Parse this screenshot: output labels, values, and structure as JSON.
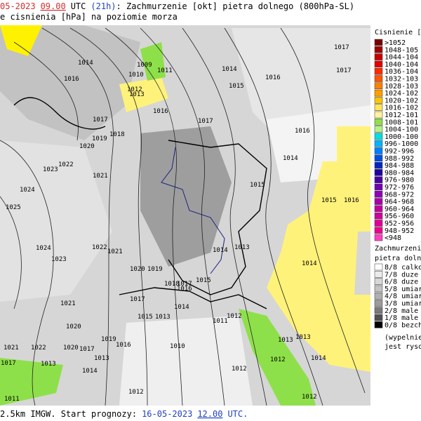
{
  "header": {
    "date": "05-2023",
    "time": "09.00",
    "utc": "UTC",
    "lead": "(21h)",
    "title": ": Zachmurzenie [okt] pietra dolnego (800hPa-SL)",
    "subtitle": "e cisnienia [hPa] na poziomie morza"
  },
  "footer": {
    "prefix": "2.5km IMGW. Start prognozy:",
    "date": "16-05-2023",
    "time": "12.00",
    "utc": "UTC."
  },
  "map_labels": [
    "1017",
    "1014",
    "1009",
    "1011",
    "1014",
    "1016",
    "1010",
    "1015",
    "1012",
    "1016",
    "1013",
    "1017",
    "1016",
    "1017",
    "1016",
    "1017",
    "1018",
    "1019",
    "1020",
    "1022",
    "1023",
    "1021",
    "1014",
    "1015",
    "1024",
    "1015",
    "1016",
    "1025",
    "1024",
    "1022",
    "1021",
    "1023",
    "1014",
    "1013",
    "1014",
    "1020",
    "1019",
    "1018",
    "1017",
    "1015",
    "1016",
    "1017",
    "1014",
    "1021",
    "1015",
    "1013",
    "1012",
    "1011",
    "1020",
    "1019",
    "1016",
    "1010",
    "1013",
    "1013",
    "1014",
    "1012",
    "1012",
    "1012",
    "1013",
    "1014",
    "1011",
    "1022",
    "1021",
    "1020",
    "1017",
    "1013",
    "1012",
    "1017"
  ],
  "pressure_legend": {
    "title": "Cisnienie [hP",
    "items": [
      {
        "label": ">1052",
        "color": "#7a0000"
      },
      {
        "label": "1048-105",
        "color": "#a00000"
      },
      {
        "label": "1044-104",
        "color": "#c80000"
      },
      {
        "label": "1040-104",
        "color": "#e60000"
      },
      {
        "label": "1036-104",
        "color": "#ff2a00"
      },
      {
        "label": "1032-103",
        "color": "#ff5500"
      },
      {
        "label": "1028-103",
        "color": "#ff7f00"
      },
      {
        "label": "1024-102",
        "color": "#ffa000"
      },
      {
        "label": "1020-102",
        "color": "#ffc400"
      },
      {
        "label": "1016-102",
        "color": "#ffe45c"
      },
      {
        "label": "1012-101",
        "color": "#fff3a0"
      },
      {
        "label": "1008-101",
        "color": "#8ee04a"
      },
      {
        "label": "1004-100",
        "color": "#b6f08a"
      },
      {
        "label": "1000-100",
        "color": "#00e0e0"
      },
      {
        "label": "996-1000",
        "color": "#00b4ff"
      },
      {
        "label": "992-996",
        "color": "#0080ff"
      },
      {
        "label": "988-992",
        "color": "#0050e0"
      },
      {
        "label": "984-988",
        "color": "#0028c0"
      },
      {
        "label": "980-984",
        "color": "#2000a0"
      },
      {
        "label": "976-980",
        "color": "#4a00a8"
      },
      {
        "label": "972-976",
        "color": "#7000b0"
      },
      {
        "label": "968-972",
        "color": "#9000b4"
      },
      {
        "label": "964-968",
        "color": "#a800a8"
      },
      {
        "label": "960-964",
        "color": "#c000a0"
      },
      {
        "label": "956-960",
        "color": "#d0009a"
      },
      {
        "label": "952-956",
        "color": "#e00094"
      },
      {
        "label": "948-952",
        "color": "#f0008c"
      },
      {
        "label": "<948",
        "color": "#ff40c0"
      }
    ]
  },
  "cloud_legend": {
    "title": "Zachmurzenie",
    "subtitle": "pietra dolneg",
    "items": [
      {
        "label": "8/8 calkow",
        "color": "#ffffff"
      },
      {
        "label": "7/8 duze",
        "color": "#ebebeb"
      },
      {
        "label": "6/8 duze",
        "color": "#d7d7d7"
      },
      {
        "label": "5/8 umiar",
        "color": "#c3c3c3"
      },
      {
        "label": "4/8 umiar",
        "color": "#afafaf"
      },
      {
        "label": "3/8 umiar",
        "color": "#9b9b9b"
      },
      {
        "label": "2/8 male",
        "color": "#7a7a7a"
      },
      {
        "label": "1/8 male",
        "color": "#505050"
      },
      {
        "label": "0/8 bezch",
        "color": "#000000"
      }
    ],
    "note1": "(wypelnieni",
    "note2": "jest rysowe"
  }
}
